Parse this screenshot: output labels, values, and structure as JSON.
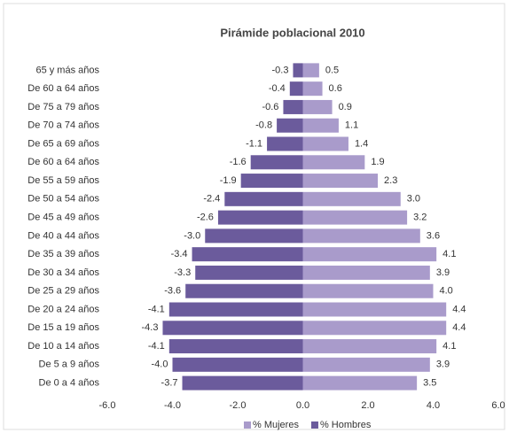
{
  "chart_data": {
    "type": "bar",
    "orientation": "horizontal",
    "title": "Pirámide poblacional 2010",
    "categories": [
      "65 y más años",
      "De 60 a 64 años",
      "De 75 a 79 años",
      "De 70 a 74 años",
      "De 65 a 69 años",
      "De 60 a 64 años",
      "De 55 a 59 años",
      "De 50 a 54 años",
      "De 45 a 49 años",
      "De 40 a 44 años",
      "De 35 a 39 años",
      "De 30 a 34 años",
      "De 25 a 29 años",
      "De 20 a 24 años",
      "De 15 a 19 años",
      "De 10 a 14 años",
      "De 5 a 9 años",
      "De 0 a 4 años"
    ],
    "series": [
      {
        "name": "% Mujeres",
        "color": "#a99bcb",
        "values": [
          0.5,
          0.6,
          0.9,
          1.1,
          1.4,
          1.9,
          2.3,
          3.0,
          3.2,
          3.6,
          4.1,
          3.9,
          4.0,
          4.4,
          4.4,
          4.1,
          3.9,
          3.5
        ],
        "value_labels": [
          "0.5",
          "0.6",
          "0.9",
          "1.1",
          "1.4",
          "1.9",
          "2.3",
          "3.0",
          "3.2",
          "3.6",
          "4.1",
          "3.9",
          "4.0",
          "4.4",
          "4.4",
          "4.1",
          "3.9",
          "3.5"
        ]
      },
      {
        "name": "% Hombres",
        "color": "#6b5b9c",
        "values": [
          -0.3,
          -0.4,
          -0.6,
          -0.8,
          -1.1,
          -1.6,
          -1.9,
          -2.4,
          -2.6,
          -3.0,
          -3.4,
          -3.3,
          -3.6,
          -4.1,
          -4.3,
          -4.1,
          -4.0,
          -3.7
        ],
        "value_labels": [
          "-0.3",
          "-0.4",
          "-0.6",
          "-0.8",
          "-1.1",
          "-1.6",
          "-1.9",
          "-2.4",
          "-2.6",
          "-3.0",
          "-3.4",
          "-3.3",
          "-3.6",
          "-4.1",
          "-4.3",
          "-4.1",
          "-4.0",
          "-3.7"
        ]
      }
    ],
    "xlim": [
      -6,
      6
    ],
    "xticks": [
      {
        "value": -6,
        "label": "-6.0"
      },
      {
        "value": -4,
        "label": "-4.0"
      },
      {
        "value": -2,
        "label": "-2.0"
      },
      {
        "value": 0,
        "label": "0.0"
      },
      {
        "value": 2,
        "label": "2.0"
      },
      {
        "value": 4,
        "label": "4.0"
      },
      {
        "value": 6,
        "label": "6.0"
      }
    ],
    "legend": "bottom"
  }
}
